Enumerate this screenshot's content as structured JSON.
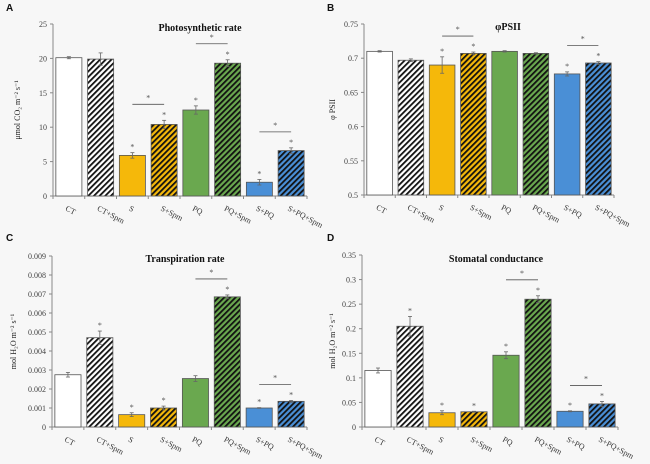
{
  "colors": {
    "control": "#ffffff",
    "salt": "#f5b80a",
    "pq": "#6aa84f",
    "salt_pq": "#4a8fd6",
    "hatch": "#111111",
    "axis": "#888888",
    "bar_edge": "#555555"
  },
  "chart_data": [
    {
      "panel": "A",
      "type": "bar",
      "title": "Photosynthetic rate",
      "ylabel": "μmol CO₂ m⁻² s⁻¹",
      "xlabel": "",
      "ylim": [
        0,
        25
      ],
      "yticks": [
        "0",
        "5",
        "10",
        "15",
        "20",
        "25"
      ],
      "ytick_values": [
        0,
        5,
        10,
        15,
        20,
        25
      ],
      "categories": [
        "CT",
        "CT+Spm",
        "S",
        "S+Spm",
        "PQ",
        "PQ+Spm",
        "S+PQ",
        "S+PQ+Spm"
      ],
      "values": [
        20.1,
        19.9,
        5.9,
        10.4,
        12.5,
        19.3,
        2.0,
        6.6
      ],
      "errors": [
        0.15,
        0.9,
        0.4,
        0.6,
        0.6,
        0.5,
        0.4,
        0.4
      ],
      "stars": [
        false,
        false,
        true,
        true,
        true,
        true,
        true,
        true
      ],
      "comparisons": [
        {
          "from": 2,
          "to": 3,
          "label": "*"
        },
        {
          "from": 4,
          "to": 5,
          "label": "*"
        },
        {
          "from": 6,
          "to": 7,
          "label": "*"
        }
      ]
    },
    {
      "panel": "B",
      "type": "bar",
      "title": "φPSII",
      "ylabel": "φ PSII",
      "xlabel": "",
      "ylim": [
        0.5,
        0.75
      ],
      "yticks": [
        "0.5",
        "0.55",
        "0.6",
        "0.65",
        "0.7",
        "0.75"
      ],
      "ytick_values": [
        0.5,
        0.55,
        0.6,
        0.65,
        0.7,
        0.75
      ],
      "categories": [
        "CT",
        "CT+Spm",
        "S",
        "S+Spm",
        "PQ",
        "PQ+Spm",
        "S+PQ",
        "S+PQ+Spm"
      ],
      "values": [
        0.71,
        0.697,
        0.69,
        0.707,
        0.71,
        0.707,
        0.677,
        0.693
      ],
      "errors": [
        0.001,
        0.002,
        0.012,
        0.002,
        0.001,
        0.001,
        0.003,
        0.002
      ],
      "stars": [
        false,
        false,
        true,
        true,
        false,
        false,
        true,
        true
      ],
      "comparisons": [
        {
          "from": 2,
          "to": 3,
          "label": "*"
        },
        {
          "from": 6,
          "to": 7,
          "label": "*"
        }
      ]
    },
    {
      "panel": "C",
      "type": "bar",
      "title": "Transpiration rate",
      "ylabel": "mol H₂O m⁻² s⁻¹",
      "xlabel": "",
      "ylim": [
        0,
        0.009
      ],
      "yticks": [
        "0",
        "0.001",
        "0.002",
        "0.003",
        "0.004",
        "0.005",
        "0.006",
        "0.007",
        "0.008",
        "0.009"
      ],
      "ytick_values": [
        0,
        0.001,
        0.002,
        0.003,
        0.004,
        0.005,
        0.006,
        0.007,
        0.008,
        0.009
      ],
      "categories": [
        "CT",
        "CT+Spm",
        "S",
        "S+Spm",
        "PQ",
        "PQ+Spm",
        "S+PQ",
        "S+PQ+Spm"
      ],
      "values": [
        0.00275,
        0.0047,
        0.00065,
        0.001,
        0.00255,
        0.00685,
        0.001,
        0.00135
      ],
      "errors": [
        0.00012,
        0.00035,
        0.0001,
        0.0001,
        0.00015,
        0.0001,
        2e-05,
        5e-05
      ],
      "stars": [
        false,
        true,
        true,
        true,
        false,
        true,
        true,
        true
      ],
      "comparisons": [
        {
          "from": 4,
          "to": 5,
          "label": "*"
        },
        {
          "from": 6,
          "to": 7,
          "label": "*"
        }
      ]
    },
    {
      "panel": "D",
      "type": "bar",
      "title": "Stomatal conductance",
      "ylabel": "mol H₂O m⁻² s⁻¹",
      "xlabel": "",
      "ylim": [
        0,
        0.35
      ],
      "yticks": [
        "0",
        "0.05",
        "0.1",
        "0.15",
        "0.2",
        "0.25",
        "0.3",
        "0.35"
      ],
      "ytick_values": [
        0,
        0.05,
        0.1,
        0.15,
        0.2,
        0.25,
        0.3,
        0.35
      ],
      "categories": [
        "CT",
        "CT+Spm",
        "S",
        "S+Spm",
        "PQ",
        "PQ+Spm",
        "S+PQ",
        "S+PQ+Spm"
      ],
      "values": [
        0.115,
        0.205,
        0.029,
        0.031,
        0.146,
        0.26,
        0.032,
        0.047
      ],
      "errors": [
        0.005,
        0.02,
        0.004,
        0.001,
        0.007,
        0.007,
        0.001,
        0.005
      ],
      "stars": [
        false,
        true,
        true,
        true,
        true,
        true,
        true,
        true
      ],
      "comparisons": [
        {
          "from": 4,
          "to": 5,
          "label": "*"
        },
        {
          "from": 6,
          "to": 7,
          "label": "*"
        }
      ]
    }
  ],
  "bar_groups": [
    "control",
    "control",
    "salt",
    "salt",
    "pq",
    "pq",
    "salt_pq",
    "salt_pq"
  ],
  "bar_hatched": [
    false,
    true,
    false,
    true,
    false,
    true,
    false,
    true
  ]
}
